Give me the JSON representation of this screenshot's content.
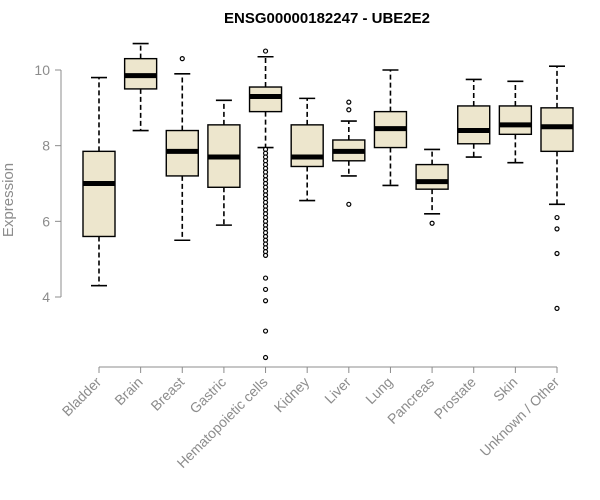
{
  "chart_data": {
    "type": "boxplot",
    "title": "ENSG00000182247 - UBE2E2",
    "ylabel": "Expression",
    "ylim": [
      1.8,
      11.2
    ],
    "yticks": [
      4,
      6,
      8,
      10
    ],
    "categories": [
      "Bladder",
      "Brain",
      "Breast",
      "Gastric",
      "Hematopoietic cells",
      "Kidney",
      "Liver",
      "Lung",
      "Pancreas",
      "Prostate",
      "Skin",
      "Unknown / Other"
    ],
    "boxes": [
      {
        "category": "Bladder",
        "min": 4.3,
        "q1": 5.6,
        "median": 7.0,
        "q3": 7.85,
        "max": 9.8,
        "outliers": []
      },
      {
        "category": "Brain",
        "min": 8.4,
        "q1": 9.5,
        "median": 9.85,
        "q3": 10.3,
        "max": 10.7,
        "outliers": []
      },
      {
        "category": "Breast",
        "min": 5.5,
        "q1": 7.2,
        "median": 7.85,
        "q3": 8.4,
        "max": 9.9,
        "outliers": [
          10.3
        ]
      },
      {
        "category": "Gastric",
        "min": 5.9,
        "q1": 6.9,
        "median": 7.7,
        "q3": 8.55,
        "max": 9.2,
        "outliers": []
      },
      {
        "category": "Hematopoietic cells",
        "min": 7.95,
        "q1": 8.9,
        "median": 9.3,
        "q3": 9.55,
        "max": 10.35,
        "outliers": [
          10.5,
          7.9,
          7.8,
          7.7,
          7.6,
          7.5,
          7.4,
          7.3,
          7.2,
          7.1,
          7.0,
          6.9,
          6.8,
          6.7,
          6.6,
          6.5,
          6.4,
          6.3,
          6.2,
          6.1,
          6.0,
          5.9,
          5.8,
          5.7,
          5.6,
          5.5,
          5.4,
          5.3,
          5.2,
          5.1,
          4.5,
          4.2,
          3.9,
          3.1,
          2.4
        ]
      },
      {
        "category": "Kidney",
        "min": 6.55,
        "q1": 7.45,
        "median": 7.7,
        "q3": 8.55,
        "max": 9.25,
        "outliers": []
      },
      {
        "category": "Liver",
        "min": 7.2,
        "q1": 7.6,
        "median": 7.85,
        "q3": 8.15,
        "max": 8.65,
        "outliers": [
          9.15,
          8.95,
          6.45
        ]
      },
      {
        "category": "Lung",
        "min": 6.95,
        "q1": 7.95,
        "median": 8.45,
        "q3": 8.9,
        "max": 10.0,
        "outliers": []
      },
      {
        "category": "Pancreas",
        "min": 6.2,
        "q1": 6.85,
        "median": 7.05,
        "q3": 7.5,
        "max": 7.9,
        "outliers": [
          5.95
        ]
      },
      {
        "category": "Prostate",
        "min": 7.7,
        "q1": 8.05,
        "median": 8.4,
        "q3": 9.05,
        "max": 9.75,
        "outliers": []
      },
      {
        "category": "Skin",
        "min": 7.55,
        "q1": 8.3,
        "median": 8.55,
        "q3": 9.05,
        "max": 9.7,
        "outliers": []
      },
      {
        "category": "Unknown / Other",
        "min": 6.45,
        "q1": 7.85,
        "median": 8.5,
        "q3": 9.0,
        "max": 10.1,
        "outliers": [
          6.1,
          5.8,
          5.15,
          3.7
        ]
      }
    ],
    "grid": false,
    "legend": "none",
    "colors": {
      "box_fill": "#ede6cd",
      "outline": "#000000",
      "axis": "#8c8c8c"
    }
  }
}
